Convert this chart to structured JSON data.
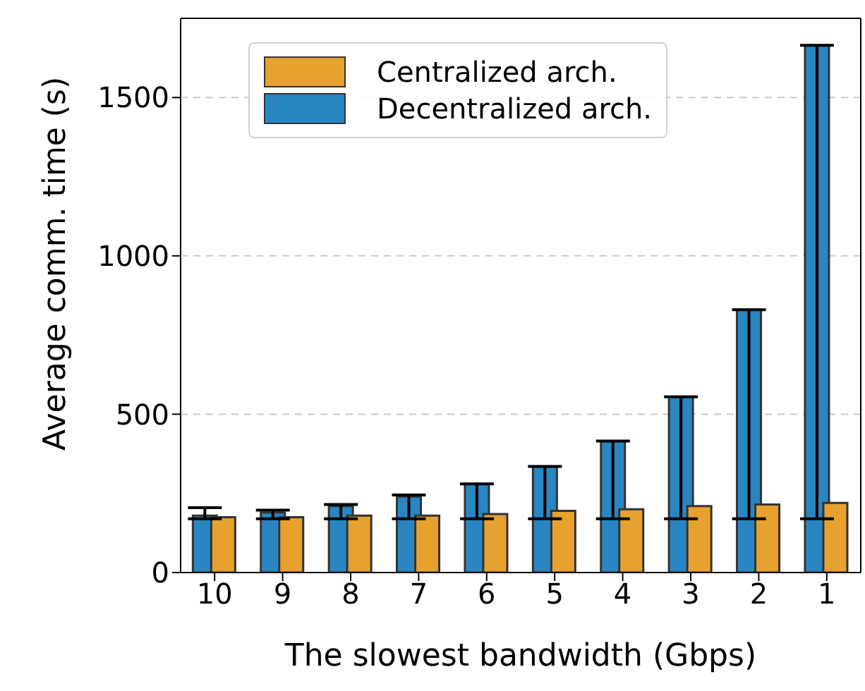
{
  "chart_data": {
    "type": "bar",
    "xlabel": "The slowest bandwidth (Gbps)",
    "ylabel": "Average comm. time (s)",
    "categories": [
      "10",
      "9",
      "8",
      "7",
      "6",
      "5",
      "4",
      "3",
      "2",
      "1"
    ],
    "series": [
      {
        "name": "Centralized arch.",
        "color": "#e6a12e",
        "values": [
          175,
          175,
          180,
          180,
          185,
          195,
          200,
          210,
          215,
          220
        ]
      },
      {
        "name": "Decentralized arch.",
        "color": "#2a86c2",
        "values": [
          180,
          190,
          210,
          240,
          280,
          335,
          415,
          555,
          830,
          1665
        ],
        "errors": [
          [
            170,
            205
          ],
          [
            170,
            197
          ],
          [
            170,
            215
          ],
          [
            170,
            245
          ],
          [
            170,
            280
          ],
          [
            170,
            335
          ],
          [
            170,
            415
          ],
          [
            170,
            555
          ],
          [
            170,
            830
          ],
          [
            170,
            1665
          ]
        ]
      }
    ],
    "ylim": [
      0,
      1750
    ],
    "yticks": [
      0,
      500,
      1000,
      1500
    ],
    "grid": "y",
    "legend": "top left"
  }
}
